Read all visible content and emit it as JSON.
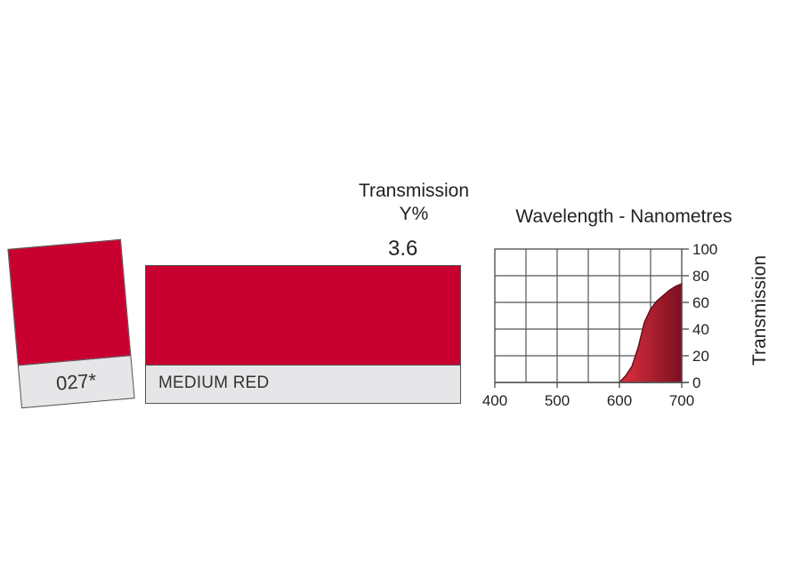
{
  "filter": {
    "code": "027*",
    "name": "MEDIUM RED",
    "swatch_color": "#c8002f"
  },
  "transmission": {
    "title_line1": "Transmission",
    "title_line2": "Y%",
    "value": "3.6"
  },
  "chart_data": {
    "type": "area",
    "title": "Wavelength - Nanometres",
    "xlabel": "",
    "ylabel": "Transmission",
    "xlim": [
      400,
      700
    ],
    "ylim": [
      0,
      100
    ],
    "x_ticks": [
      "400",
      "500",
      "600",
      "700"
    ],
    "y_ticks": [
      "0",
      "20",
      "40",
      "60",
      "80",
      "100"
    ],
    "grid": true,
    "x": [
      600,
      610,
      620,
      630,
      640,
      650,
      660,
      670,
      680,
      690,
      700
    ],
    "values": [
      0,
      5,
      12,
      26,
      45,
      55,
      61,
      65,
      69,
      72,
      74
    ],
    "color": "#b5182a"
  }
}
